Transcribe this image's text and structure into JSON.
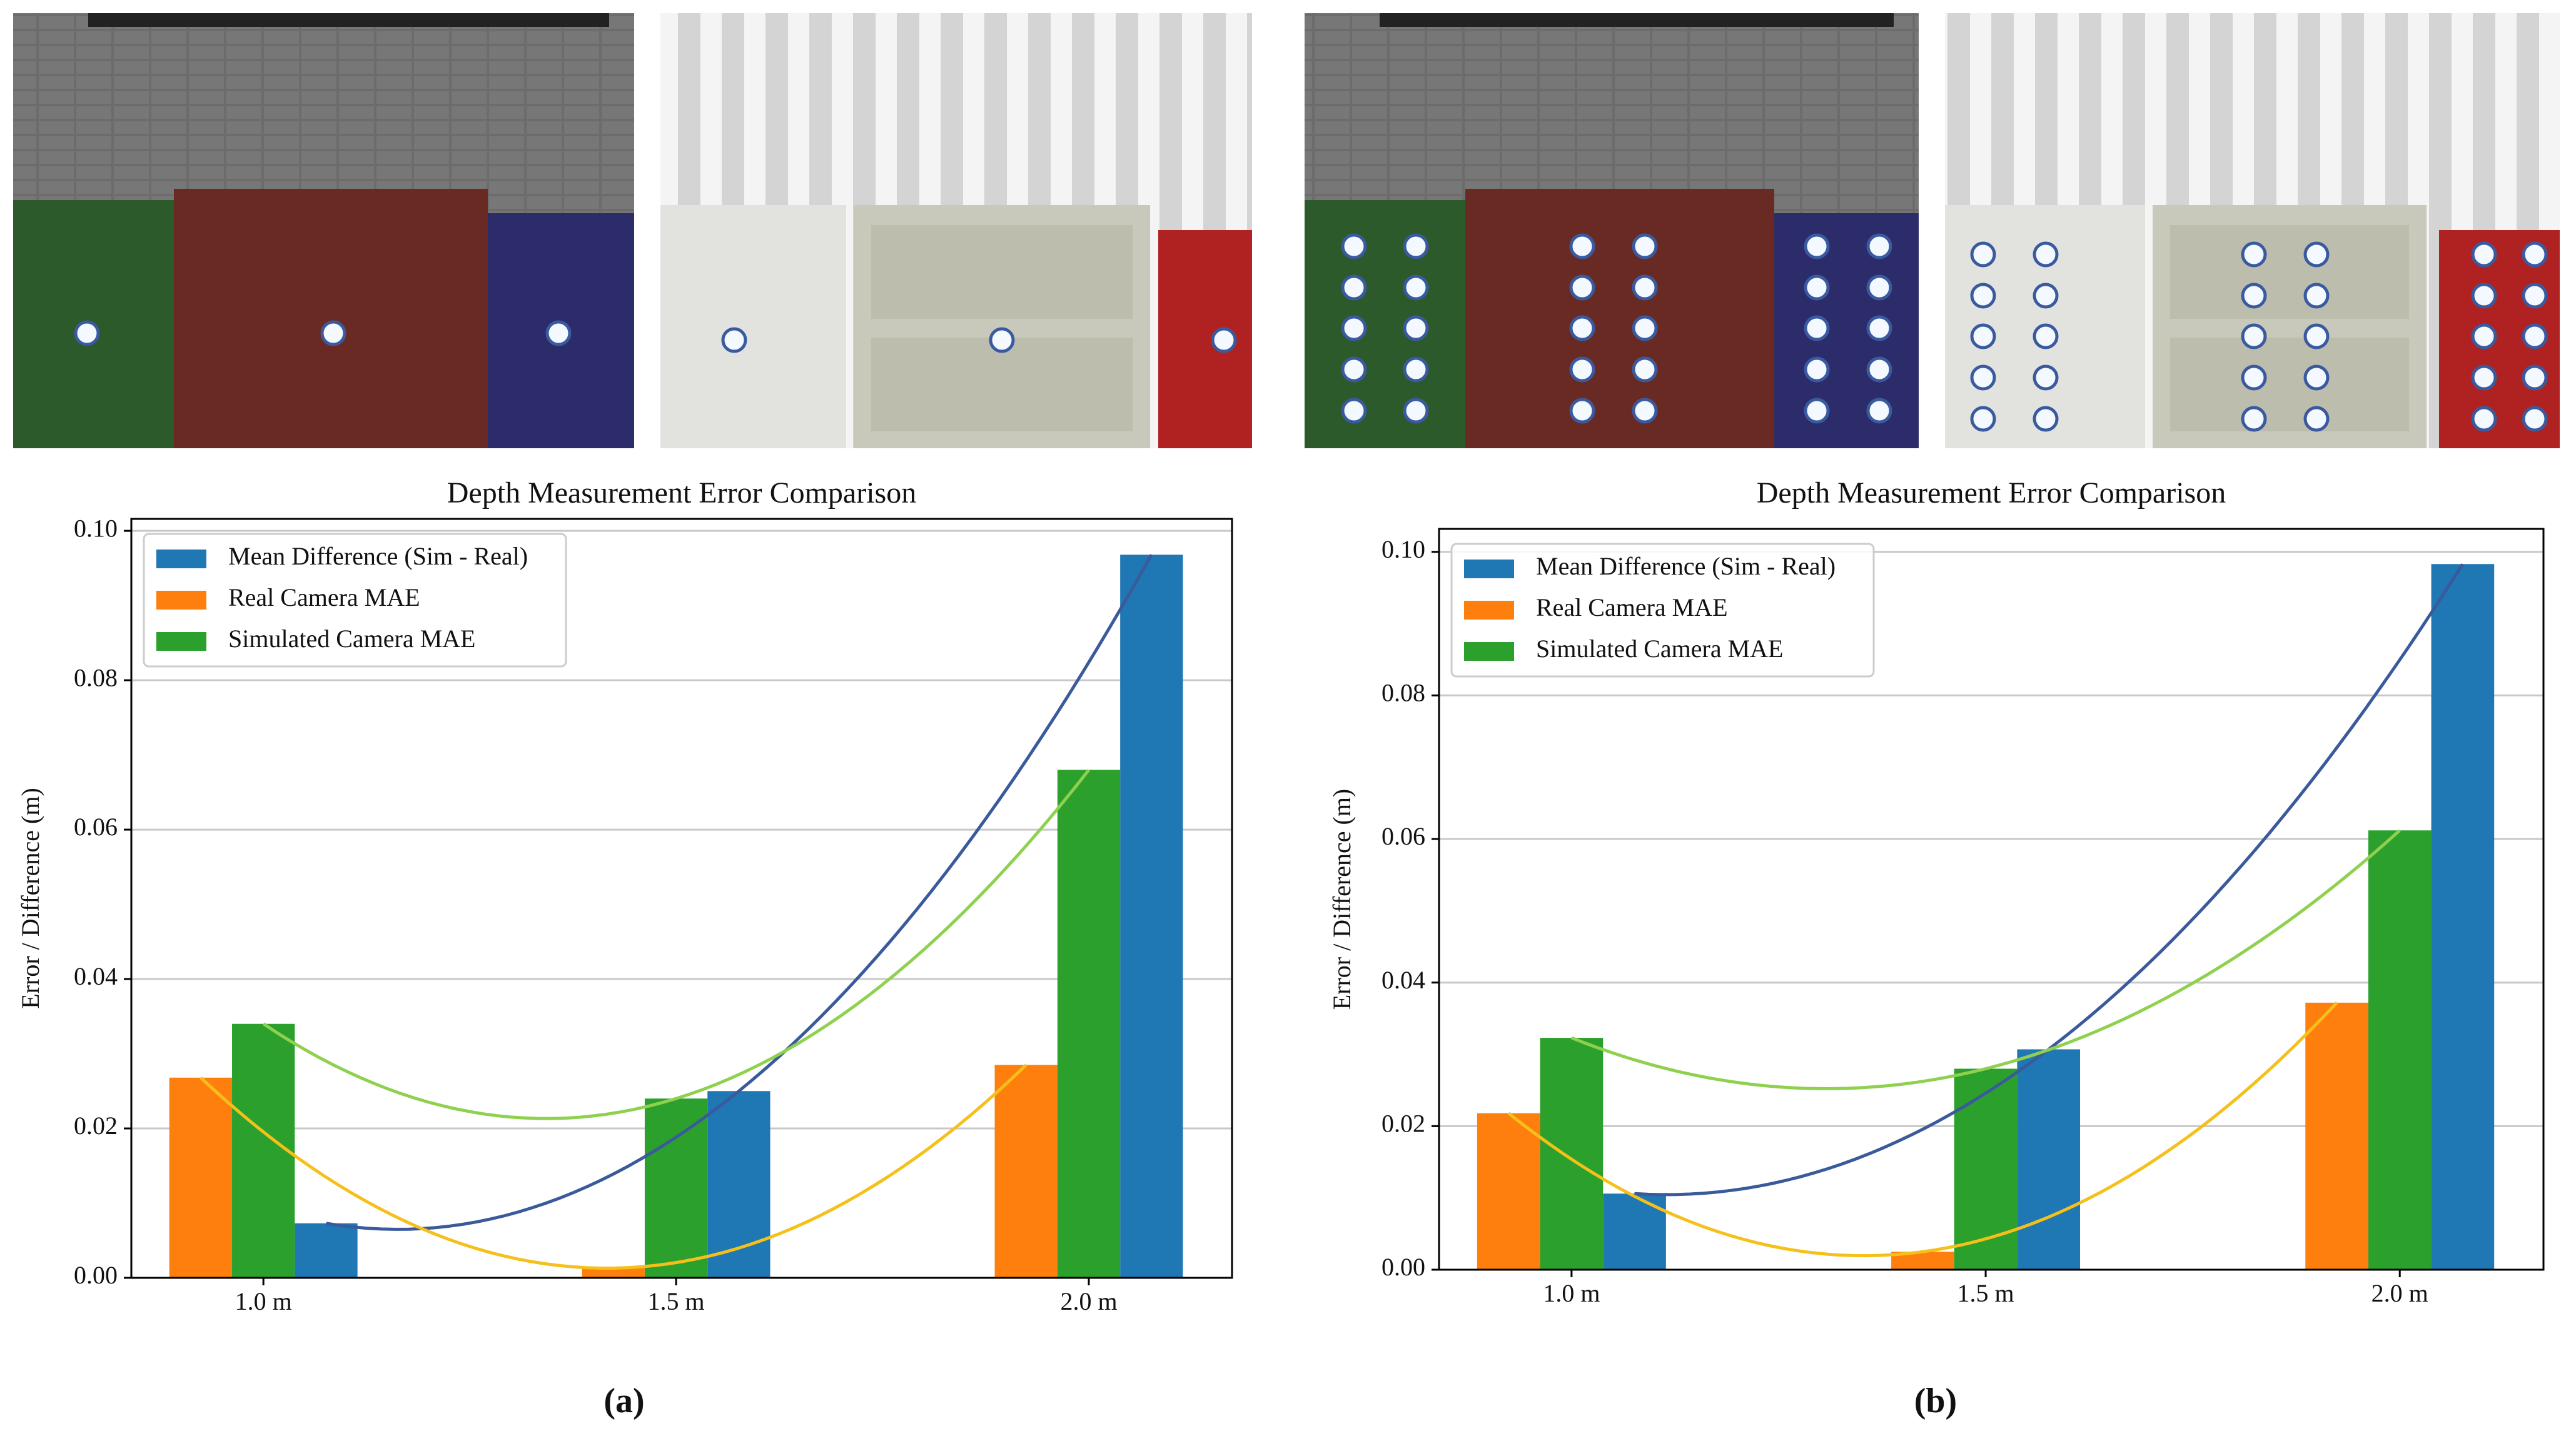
{
  "chart_data": [
    {
      "type": "bar",
      "title": "Depth Measurement Error Comparison",
      "y_label": "Error / Difference (m)",
      "categories": [
        "1.0 m",
        "1.5 m",
        "2.0 m"
      ],
      "series": [
        {
          "name": "Mean Difference (Sim - Real)",
          "color": "#1f77b4",
          "curve_color": "#3a5a9c",
          "values": [
            0.0073,
            0.025,
            0.0968
          ]
        },
        {
          "name": "Real Camera MAE",
          "color": "#ff7f0e",
          "curve_color": "#f5c01a",
          "values": [
            0.0268,
            0.0013,
            0.0285
          ]
        },
        {
          "name": "Simulated Camera MAE",
          "color": "#2ca02c",
          "curve_color": "#8fd14f",
          "values": [
            0.034,
            0.024,
            0.068
          ]
        }
      ],
      "ylim": [
        0,
        0.1016
      ],
      "yticks": [
        {
          "value": 0,
          "label": "0.00"
        },
        {
          "value": 0.02,
          "label": "0.02"
        },
        {
          "value": 0.04,
          "label": "0.04"
        },
        {
          "value": 0.06,
          "label": "0.06"
        },
        {
          "value": 0.08,
          "label": "0.08"
        },
        {
          "value": 0.1,
          "label": "0.10"
        }
      ],
      "grid": true,
      "legend": "upper left",
      "panel_label": "(a)"
    },
    {
      "type": "bar",
      "title": "Depth Measurement Error Comparison",
      "y_label": "Error / Difference (m)",
      "categories": [
        "1.0 m",
        "1.5 m",
        "2.0 m"
      ],
      "series": [
        {
          "name": "Mean Difference (Sim - Real)",
          "color": "#1f77b4",
          "curve_color": "#3a5a9c",
          "values": [
            0.0106,
            0.0307,
            0.0983
          ]
        },
        {
          "name": "Real Camera MAE",
          "color": "#ff7f0e",
          "curve_color": "#f5c01a",
          "values": [
            0.0218,
            0.0025,
            0.0372
          ]
        },
        {
          "name": "Simulated Camera MAE",
          "color": "#2ca02c",
          "curve_color": "#8fd14f",
          "values": [
            0.0323,
            0.028,
            0.0612
          ]
        }
      ],
      "ylim": [
        0,
        0.1032
      ],
      "yticks": [
        {
          "value": 0,
          "label": "0.00"
        },
        {
          "value": 0.02,
          "label": "0.02"
        },
        {
          "value": 0.04,
          "label": "0.04"
        },
        {
          "value": 0.06,
          "label": "0.06"
        },
        {
          "value": 0.08,
          "label": "0.08"
        },
        {
          "value": 0.1,
          "label": "0.10"
        }
      ],
      "grid": true,
      "legend": "upper left",
      "panel_label": "(b)"
    }
  ]
}
